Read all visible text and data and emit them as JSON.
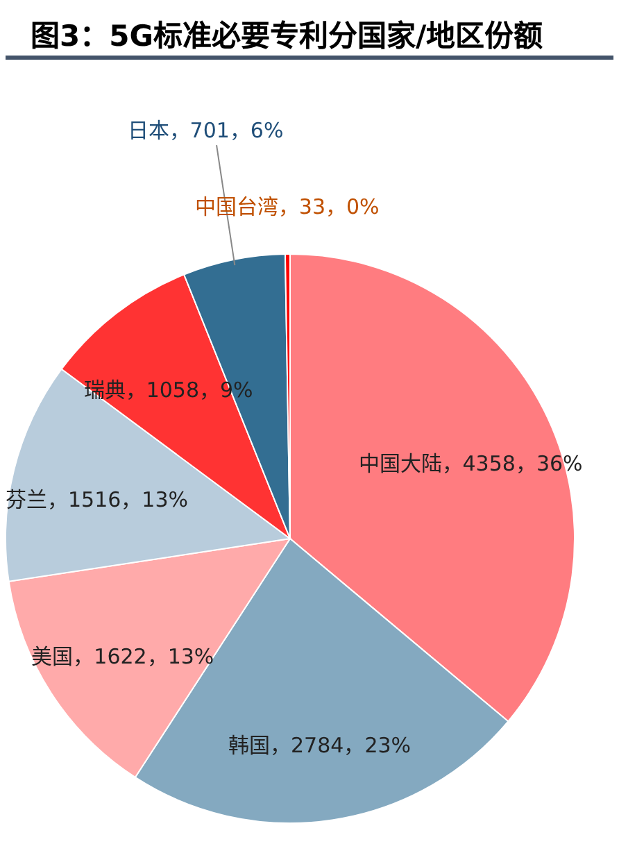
{
  "chart_data": {
    "type": "pie",
    "title": "图3：5G标准必要专利分国家/地区份额",
    "categories": [
      "中国大陆",
      "韩国",
      "美国",
      "芬兰",
      "瑞典",
      "日本",
      "中国台湾"
    ],
    "values": [
      4358,
      2784,
      1622,
      1516,
      1058,
      701,
      33
    ],
    "value_labels": [
      "4358，36%",
      "2784，23%",
      "1622，13%",
      "1516，13%",
      "1058，9%",
      "701，6%",
      "33，0%"
    ],
    "colors": [
      "#ff7c80",
      "#84a9c0",
      "#ffaaaa",
      "#b8ccdc",
      "#ff3333",
      "#336e92",
      "#ff0000"
    ],
    "legend": false
  }
}
